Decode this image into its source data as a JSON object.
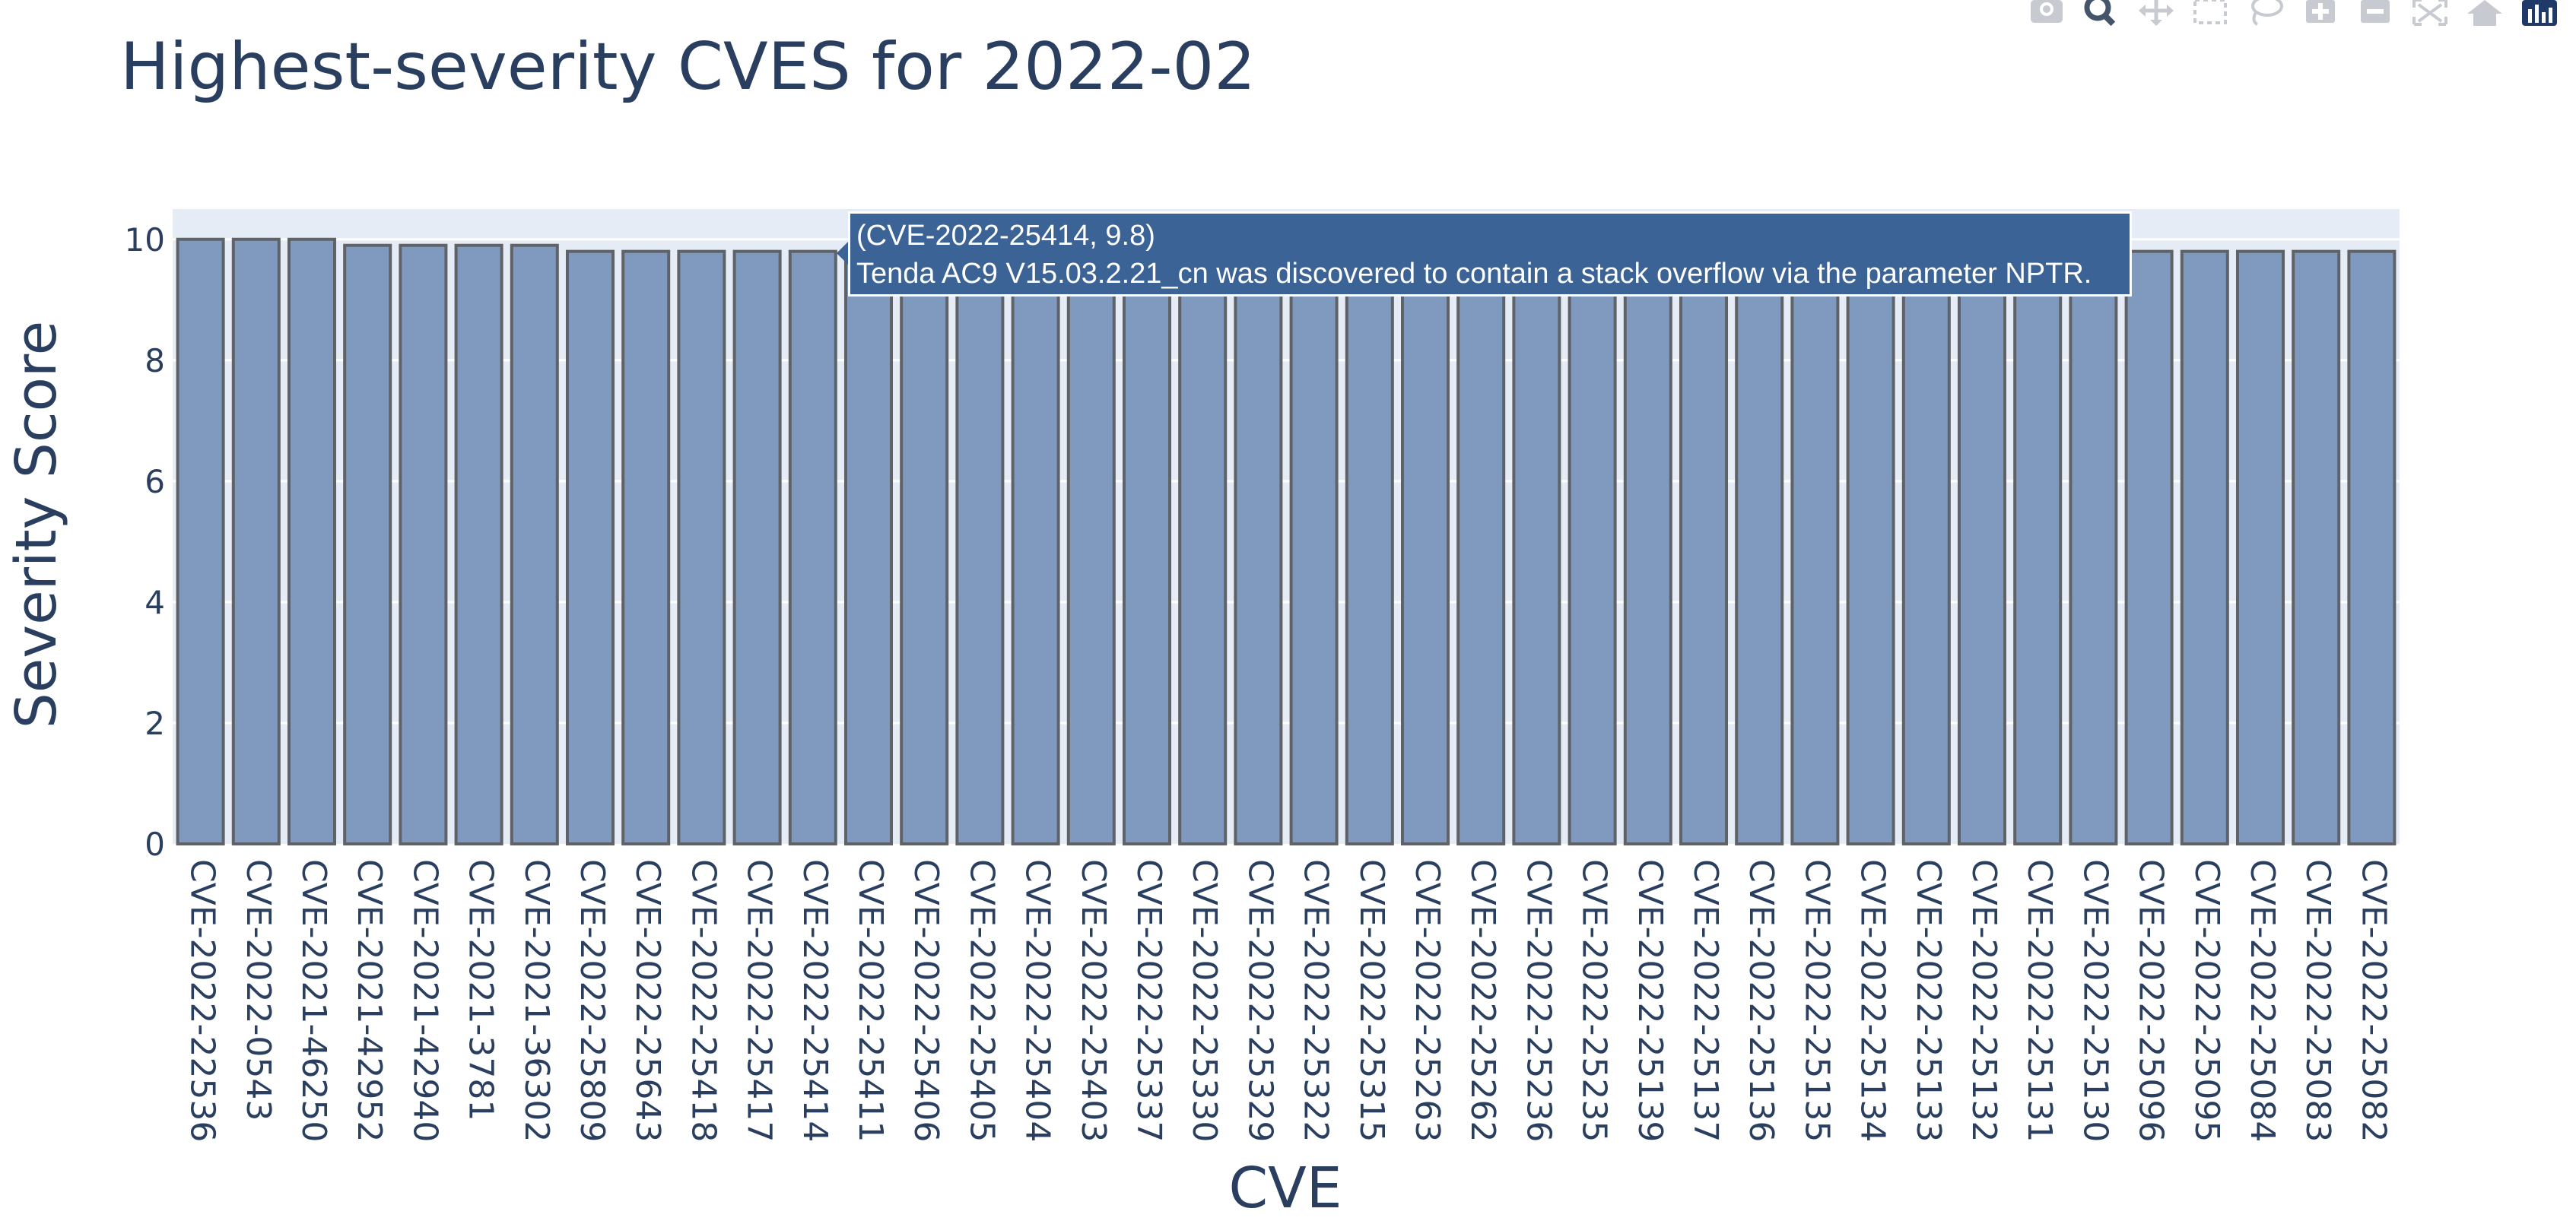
{
  "title": "Highest-severity CVES for 2022-02",
  "toolbar": {
    "icons": [
      "camera-icon",
      "zoom-icon",
      "pan-icon",
      "box-select-icon",
      "lasso-select-icon",
      "zoom-in-icon",
      "zoom-out-icon",
      "autoscale-icon",
      "reset-axes-icon",
      "plotly-logo-icon"
    ]
  },
  "colors": {
    "bar_fill": "#7f99bf",
    "bar_stroke": "#5f6368",
    "plot_bg": "#e5ecf6",
    "text": "#2a3f5f",
    "tooltip_bg": "#3c6396"
  },
  "tooltip": {
    "line1": "(CVE-2022-25414, 9.8)",
    "line2": "Tenda AC9 V15.03.2.21_cn was discovered to contain a stack overflow via the parameter NPTR."
  },
  "chart_data": {
    "type": "bar",
    "title": "Highest-severity CVES for 2022-02",
    "xlabel": "CVE",
    "ylabel": "Severity Score",
    "ylim": [
      0,
      10.5
    ],
    "yticks": [
      0,
      2,
      4,
      6,
      8,
      10
    ],
    "grid": true,
    "categories": [
      "CVE-2022-22536",
      "CVE-2022-0543",
      "CVE-2021-46250",
      "CVE-2021-42952",
      "CVE-2021-42940",
      "CVE-2021-3781",
      "CVE-2021-36302",
      "CVE-2022-25809",
      "CVE-2022-25643",
      "CVE-2022-25418",
      "CVE-2022-25417",
      "CVE-2022-25414",
      "CVE-2022-25411",
      "CVE-2022-25406",
      "CVE-2022-25405",
      "CVE-2022-25404",
      "CVE-2022-25403",
      "CVE-2022-25337",
      "CVE-2022-25330",
      "CVE-2022-25329",
      "CVE-2022-25322",
      "CVE-2022-25315",
      "CVE-2022-25263",
      "CVE-2022-25262",
      "CVE-2022-25236",
      "CVE-2022-25235",
      "CVE-2022-25139",
      "CVE-2022-25137",
      "CVE-2022-25136",
      "CVE-2022-25135",
      "CVE-2022-25134",
      "CVE-2022-25133",
      "CVE-2022-25132",
      "CVE-2022-25131",
      "CVE-2022-25130",
      "CVE-2022-25096",
      "CVE-2022-25095",
      "CVE-2022-25084",
      "CVE-2022-25083",
      "CVE-2022-25082"
    ],
    "values": [
      10,
      10,
      10,
      9.9,
      9.9,
      9.9,
      9.9,
      9.8,
      9.8,
      9.8,
      9.8,
      9.8,
      9.8,
      9.8,
      9.8,
      9.8,
      9.8,
      9.8,
      9.8,
      9.8,
      9.8,
      9.8,
      9.8,
      9.8,
      9.8,
      9.8,
      9.8,
      9.8,
      9.8,
      9.8,
      9.8,
      9.8,
      9.8,
      9.8,
      9.8,
      9.8,
      9.8,
      9.8,
      9.8,
      9.8
    ]
  }
}
